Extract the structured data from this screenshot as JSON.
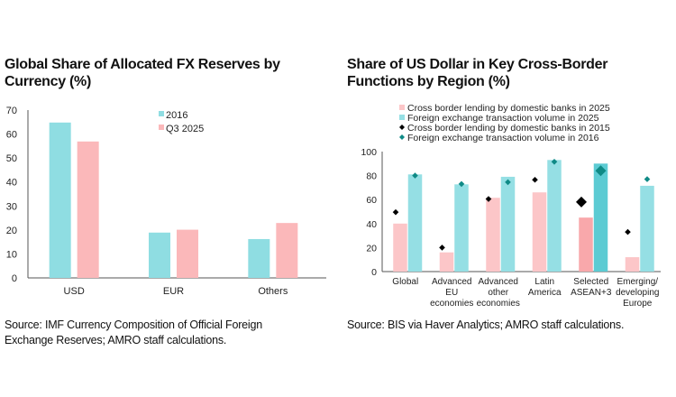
{
  "chart_data": [
    {
      "type": "bar",
      "title": "Global Share of Allocated FX Reserves by Currency (%)",
      "categories": [
        "USD",
        "EUR",
        "Others"
      ],
      "series": [
        {
          "name": "2016",
          "color": "#8fdde2",
          "values": [
            64.8,
            18.9,
            16.2
          ]
        },
        {
          "name": "Q3 2025",
          "color": "#fbb8ba",
          "values": [
            56.9,
            20.1,
            22.9
          ]
        }
      ],
      "ylim": [
        0,
        70
      ],
      "yticks": [
        0,
        10,
        20,
        30,
        40,
        50,
        60,
        70
      ],
      "legend": "top-center",
      "grid": false,
      "source": "Source: IMF Currency Composition of Official Foreign Exchange Reserves; AMRO staff calculations."
    },
    {
      "type": "bar",
      "title": "Share of US Dollar in Key Cross-Border Functions by Region (%)",
      "categories": [
        [
          "Global"
        ],
        [
          "Advanced",
          "EU",
          "economies"
        ],
        [
          "Advanced",
          "other",
          "economies"
        ],
        [
          "Latin",
          "America"
        ],
        [
          "Selected",
          "ASEAN+3"
        ],
        [
          "Emerging/",
          "developing",
          "Europe"
        ]
      ],
      "highlight_category": 4,
      "series": [
        {
          "name": "Cross border lending by domestic banks in 2025",
          "kind": "bar",
          "color": "#fcc6c8",
          "highlight_color": "#f9a8ab",
          "values": [
            40,
            16,
            61.5,
            66,
            45,
            12
          ]
        },
        {
          "name": "Foreign exchange transaction volume in 2025",
          "kind": "bar",
          "color": "#95dfe4",
          "highlight_color": "#5ccbd3",
          "values": [
            81,
            72.7,
            79,
            93,
            90,
            71.5
          ]
        },
        {
          "name": "Cross border lending by domestic banks in 2015",
          "kind": "marker",
          "color": "#000000",
          "values": [
            49.5,
            20,
            60.5,
            76.5,
            58,
            33
          ]
        },
        {
          "name": "Foreign exchange transaction volume in 2016",
          "kind": "marker",
          "color": "#0f8a86",
          "values": [
            80,
            73,
            74.5,
            91.5,
            84,
            77
          ]
        }
      ],
      "ylim": [
        0,
        100
      ],
      "yticks": [
        0,
        20,
        40,
        60,
        80,
        100
      ],
      "legend": "top",
      "grid": false,
      "source": "Source: BIS via Haver Analytics; AMRO staff calculations."
    }
  ],
  "titles": {
    "left_line1": "Global Share of Allocated FX Reserves by",
    "left_line2": "Currency (%)",
    "right_line1": "Share of US Dollar in Key Cross-Border",
    "right_line2": "Functions by Region (%)"
  },
  "sources": {
    "left_line1": "Source: IMF Currency Composition of Official Foreign",
    "left_line2": "Exchange Reserves; AMRO staff calculations.",
    "right": "Source: BIS via Haver Analytics; AMRO staff calculations."
  }
}
